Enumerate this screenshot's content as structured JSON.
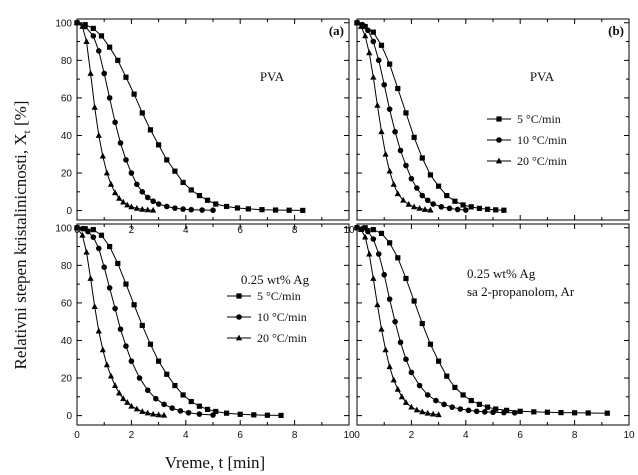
{
  "figure": {
    "ylabel": "Relativni stepen kristalinicnosti, X",
    "ylabel_subscript": "t",
    "ylabel_unit": " [%]",
    "xlabel": "Vreme, t [min]"
  },
  "chart_data": [
    {
      "type": "line",
      "panel": "a",
      "panel_label": "(a)",
      "texts": [
        "PVA"
      ],
      "legend": false,
      "xlim": [
        0,
        10
      ],
      "ylim": [
        -5,
        102
      ],
      "xticks": [
        "0",
        "2",
        "4",
        "6",
        "8",
        "10"
      ],
      "yticks": [
        "0",
        "20",
        "40",
        "60",
        "80",
        "100"
      ],
      "series": [
        {
          "name": "5 °C/min",
          "marker": "square",
          "x": [
            0,
            0.3,
            0.6,
            0.9,
            1.2,
            1.5,
            1.8,
            2.1,
            2.4,
            2.7,
            3.0,
            3.3,
            3.6,
            3.9,
            4.2,
            4.5,
            4.8,
            5.1,
            5.5,
            5.9,
            6.3,
            6.8,
            7.3,
            7.8,
            8.3
          ],
          "y": [
            100,
            99,
            97,
            93,
            87,
            80,
            71,
            62,
            52,
            43,
            35,
            27,
            21,
            15,
            11,
            8,
            5.5,
            3.5,
            2.2,
            1.4,
            0.9,
            0.5,
            0.3,
            0.2,
            0.1
          ]
        },
        {
          "name": "10 °C/min",
          "marker": "circle",
          "x": [
            0,
            0.3,
            0.6,
            0.8,
            1.0,
            1.2,
            1.4,
            1.6,
            1.8,
            2.0,
            2.2,
            2.4,
            2.6,
            2.8,
            3.0,
            3.3,
            3.6,
            3.9,
            4.2,
            4.6,
            5.0
          ],
          "y": [
            100,
            98,
            93,
            85,
            73,
            60,
            47,
            36,
            27,
            20,
            14,
            10,
            7,
            5,
            3.5,
            2.2,
            1.3,
            0.8,
            0.5,
            0.3,
            0.2
          ]
        },
        {
          "name": "20 °C/min",
          "marker": "triangle",
          "x": [
            0,
            0.2,
            0.35,
            0.5,
            0.65,
            0.8,
            0.95,
            1.1,
            1.25,
            1.4,
            1.55,
            1.7,
            1.85,
            2.0,
            2.2,
            2.4,
            2.6,
            2.8
          ],
          "y": [
            100,
            98,
            90,
            73,
            55,
            40,
            29,
            20,
            14,
            9.5,
            6.5,
            4.5,
            3,
            2,
            1.2,
            0.7,
            0.4,
            0.2
          ]
        }
      ]
    },
    {
      "type": "line",
      "panel": "b",
      "panel_label": "(b)",
      "texts": [
        "PVA"
      ],
      "legend": true,
      "legend_entries": [
        "5 °C/min",
        "10 °C/min",
        "20 °C/min"
      ],
      "xlim": [
        0,
        10
      ],
      "ylim": [
        -5,
        102
      ],
      "xticks": [],
      "yticks": [],
      "series": [
        {
          "name": "5 °C/min",
          "marker": "square",
          "x": [
            0,
            0.3,
            0.6,
            0.9,
            1.2,
            1.5,
            1.8,
            2.1,
            2.4,
            2.7,
            3.0,
            3.3,
            3.6,
            3.9,
            4.2,
            4.5,
            4.8,
            5.1,
            5.4
          ],
          "y": [
            100,
            98,
            95,
            88,
            78,
            65,
            52,
            39,
            28,
            19,
            13,
            8,
            5,
            3,
            2,
            1.2,
            0.7,
            0.4,
            0.2
          ]
        },
        {
          "name": "10 °C/min",
          "marker": "circle",
          "x": [
            0,
            0.2,
            0.4,
            0.6,
            0.8,
            1.0,
            1.2,
            1.4,
            1.6,
            1.8,
            2.0,
            2.2,
            2.4,
            2.6,
            2.8,
            3.1,
            3.4,
            3.7,
            4.0
          ],
          "y": [
            100,
            99,
            96,
            90,
            80,
            67,
            54,
            42,
            32,
            24,
            17,
            12,
            8,
            5.5,
            3.5,
            2,
            1.2,
            0.6,
            0.3
          ]
        },
        {
          "name": "20 °C/min",
          "marker": "triangle",
          "x": [
            0,
            0.15,
            0.3,
            0.45,
            0.6,
            0.75,
            0.9,
            1.05,
            1.2,
            1.35,
            1.5,
            1.7,
            1.9,
            2.1,
            2.3,
            2.5,
            2.7
          ],
          "y": [
            100,
            98,
            93,
            84,
            71,
            56,
            42,
            30,
            21,
            14,
            9,
            5.5,
            3.3,
            2,
            1.2,
            0.6,
            0.3
          ]
        }
      ]
    },
    {
      "type": "line",
      "panel": "c",
      "panel_label": "",
      "texts": [
        "0.25 wt% Ag"
      ],
      "legend": true,
      "legend_entries": [
        "5 °C/min",
        "10 °C/min",
        "20 °C/min"
      ],
      "xlim": [
        0,
        10
      ],
      "ylim": [
        -5,
        102
      ],
      "xticks": [
        "0",
        "2",
        "4",
        "6",
        "8",
        "10"
      ],
      "yticks": [
        "0",
        "20",
        "40",
        "60",
        "80",
        "100"
      ],
      "series": [
        {
          "name": "5 °C/min",
          "marker": "square",
          "x": [
            0,
            0.3,
            0.6,
            0.9,
            1.2,
            1.5,
            1.8,
            2.1,
            2.4,
            2.7,
            3.0,
            3.3,
            3.6,
            3.9,
            4.2,
            4.5,
            4.8,
            5.1,
            5.5,
            6.0,
            6.5,
            7.0,
            7.5
          ],
          "y": [
            100,
            99.5,
            99,
            96,
            90,
            81,
            70,
            59,
            48,
            38,
            29,
            22,
            16,
            11,
            7.5,
            5,
            3.3,
            2.2,
            1.3,
            0.7,
            0.4,
            0.2,
            0.1
          ]
        },
        {
          "name": "10 °C/min",
          "marker": "circle",
          "x": [
            0,
            0.2,
            0.4,
            0.6,
            0.8,
            1.0,
            1.2,
            1.4,
            1.6,
            1.8,
            2.0,
            2.3,
            2.6,
            2.9,
            3.2,
            3.5,
            3.8,
            4.1,
            4.5,
            5.0
          ],
          "y": [
            100,
            99.5,
            98,
            95,
            89,
            79,
            68,
            57,
            46,
            37,
            29,
            20,
            13.5,
            9,
            6,
            4,
            2.5,
            1.5,
            0.8,
            0.3
          ]
        },
        {
          "name": "20 °C/min",
          "marker": "triangle",
          "x": [
            0,
            0.2,
            0.35,
            0.5,
            0.65,
            0.8,
            0.95,
            1.1,
            1.25,
            1.4,
            1.55,
            1.7,
            1.85,
            2.0,
            2.2,
            2.4,
            2.6,
            2.8,
            3.0,
            3.2
          ],
          "y": [
            100,
            96,
            87,
            73,
            58,
            45,
            35,
            27,
            21,
            16,
            12,
            9,
            7,
            5,
            3.5,
            2.2,
            1.4,
            0.8,
            0.4,
            0.2
          ]
        }
      ]
    },
    {
      "type": "line",
      "panel": "d",
      "panel_label": "",
      "texts": [
        "0.25 wt% Ag",
        "sa 2-propanolom, Ar"
      ],
      "legend": false,
      "xlim": [
        0,
        10
      ],
      "ylim": [
        -5,
        102
      ],
      "xticks": [
        "0",
        "2",
        "4",
        "6",
        "8",
        "10"
      ],
      "yticks": [],
      "series": [
        {
          "name": "5 °C/min",
          "marker": "square",
          "x": [
            0,
            0.3,
            0.6,
            0.9,
            1.2,
            1.5,
            1.8,
            2.1,
            2.4,
            2.7,
            3.0,
            3.3,
            3.6,
            3.9,
            4.2,
            4.5,
            4.8,
            5.1,
            5.5,
            6.0,
            6.5,
            7.0,
            7.5,
            8.0,
            8.5,
            9.2
          ],
          "y": [
            100,
            100,
            99,
            97,
            92,
            84,
            73,
            61,
            49,
            38,
            29,
            21,
            15,
            11,
            8,
            6,
            4.5,
            3.5,
            2.8,
            2.3,
            2,
            1.8,
            1.6,
            1.5,
            1.4,
            1.3
          ]
        },
        {
          "name": "10 °C/min",
          "marker": "circle",
          "x": [
            0,
            0.2,
            0.4,
            0.6,
            0.8,
            1.0,
            1.2,
            1.4,
            1.6,
            1.8,
            2.0,
            2.3,
            2.6,
            2.9,
            3.2,
            3.5,
            3.8,
            4.1,
            4.4,
            4.7,
            5.0,
            5.4,
            5.8
          ],
          "y": [
            100,
            99.5,
            98,
            94,
            86,
            75,
            62,
            50,
            39,
            30,
            23,
            16,
            11,
            8,
            6,
            4.5,
            3.5,
            2.8,
            2.3,
            2,
            1.8,
            1.6,
            1.5
          ]
        },
        {
          "name": "20 °C/min",
          "marker": "triangle",
          "x": [
            0,
            0.15,
            0.3,
            0.45,
            0.6,
            0.75,
            0.9,
            1.05,
            1.2,
            1.35,
            1.5,
            1.65,
            1.8,
            2.0,
            2.2,
            2.4,
            2.6,
            2.8,
            3.0
          ],
          "y": [
            100,
            99,
            95,
            86,
            73,
            59,
            46,
            35,
            26,
            19,
            14,
            10,
            7,
            4.5,
            3,
            2,
            1.3,
            0.8,
            0.5
          ]
        }
      ]
    }
  ]
}
